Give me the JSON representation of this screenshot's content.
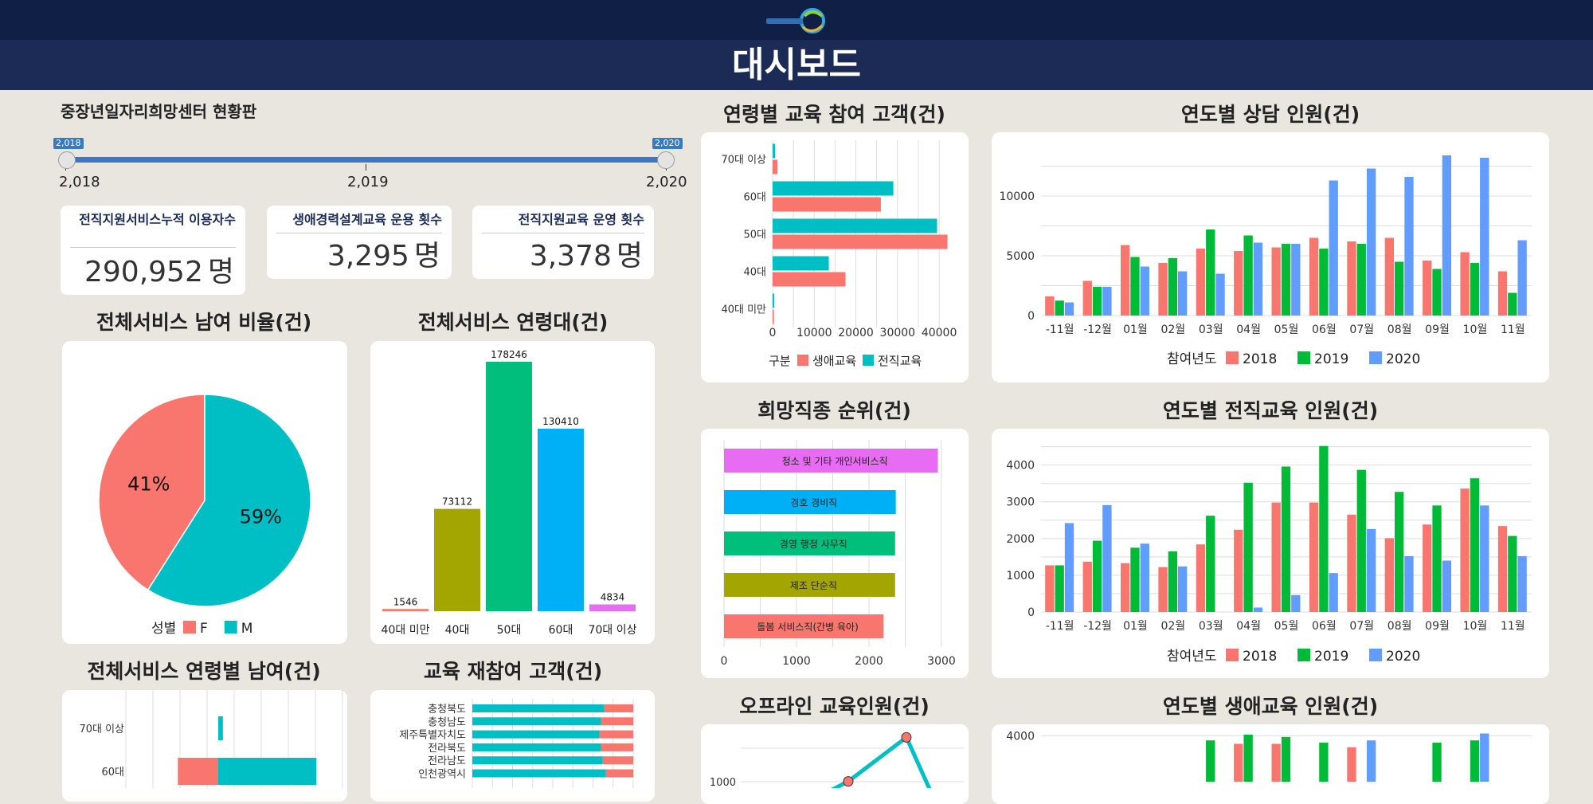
{
  "header": {
    "title": "대시보드",
    "logo_icon": "center-logo-icon"
  },
  "sidebar": {
    "title": "중장년일자리희망센터 현황판"
  },
  "slider": {
    "min_label": "2,018",
    "mid_label": "2,019",
    "max_label": "2,020",
    "handle_low": "2,018",
    "handle_high": "2,020",
    "low": 2018,
    "high": 2020
  },
  "kpis": [
    {
      "label": "전직지원서비스누적 이용자수",
      "value": "290,952",
      "unit": "명"
    },
    {
      "label": "생애경력설계교육 운용 횟수",
      "value": "3,295",
      "unit": "명"
    },
    {
      "label": "전직지원교육 운영 횟수",
      "value": "3,378",
      "unit": "명"
    }
  ],
  "sections": {
    "gender": "전체서비스 남여 비율(건)",
    "ageband": "전체서비스 연령대(건)",
    "age_gender": "전체서비스 연령별 남여(건)",
    "reedu": "교육 재참여 고객(건)",
    "age_edu": "연령별 교육 참여 고객(건)",
    "jobs": "희망직종 순위(건)",
    "offline": "오프라인 교육인원(건)",
    "consult": "연도별 상담 인원(건)",
    "transfer": "연도별 전직교육 인원(건)",
    "life": "연도별 생애교육 인원(건)"
  },
  "colors": {
    "red": "#f8766d",
    "teal": "#00bfc4",
    "green": "#00ba38",
    "blue": "#619cff",
    "olive": "#a3a500",
    "sky": "#00b0f6",
    "mint": "#00bf7d",
    "magenta": "#e76bf3"
  },
  "chart_data": [
    {
      "id": "gender",
      "type": "pie",
      "labels": [
        "F",
        "M"
      ],
      "values": [
        41,
        59
      ],
      "slice_labels": [
        "41%",
        "59%"
      ],
      "legend_title": "성별"
    },
    {
      "id": "ageband",
      "type": "bar",
      "categories": [
        "40대 미만",
        "40대",
        "50대",
        "60대",
        "70대 이상"
      ],
      "values": [
        1546,
        73112,
        178246,
        130410,
        4834
      ],
      "data_labels": [
        "1546",
        "73112",
        "178246",
        "130410",
        "4834"
      ]
    },
    {
      "id": "age_edu",
      "type": "bar",
      "orientation": "horizontal",
      "categories": [
        "70대 이상",
        "60대",
        "50대",
        "40대",
        "40대 미만"
      ],
      "series": [
        {
          "name": "생애교육",
          "values": [
            1200,
            26000,
            42000,
            17500,
            300
          ]
        },
        {
          "name": "전직교육",
          "values": [
            600,
            29000,
            39500,
            13500,
            400
          ]
        }
      ],
      "xticks": [
        "0",
        "10000",
        "20000",
        "30000",
        "40000"
      ],
      "xlim": [
        0,
        44000
      ],
      "legend_title": "구분"
    },
    {
      "id": "jobs",
      "type": "bar",
      "orientation": "horizontal",
      "categories": [
        "청소 및 기타 개인서비스직",
        "경호 경비직",
        "경영 행정 사무직",
        "제조 단순직",
        "돌봄 서비스직(간병 육아)"
      ],
      "values": [
        2950,
        2370,
        2360,
        2360,
        2200
      ],
      "xticks": [
        "0",
        "1000",
        "2000",
        "3000"
      ],
      "xlim": [
        0,
        3000
      ]
    },
    {
      "id": "consult",
      "type": "bar",
      "categories": [
        "-11월",
        "-12월",
        "01월",
        "02월",
        "03월",
        "04월",
        "05월",
        "06월",
        "07월",
        "08월",
        "09월",
        "10월",
        "11월"
      ],
      "series": [
        {
          "name": "2018",
          "values": [
            1600,
            2900,
            5900,
            4400,
            5600,
            5400,
            5700,
            6500,
            6200,
            6500,
            4600,
            5300,
            3700
          ]
        },
        {
          "name": "2019",
          "values": [
            1250,
            2400,
            4900,
            4800,
            7200,
            6700,
            6000,
            5600,
            6000,
            4500,
            3900,
            4400,
            1900
          ]
        },
        {
          "name": "2020",
          "values": [
            1100,
            2400,
            4100,
            3700,
            3500,
            6100,
            6000,
            11300,
            12300,
            11600,
            13400,
            13200,
            6300
          ]
        }
      ],
      "yticks": [
        "0",
        "5000",
        "10000"
      ],
      "ylim": [
        0,
        14000
      ],
      "legend_title": "참여년도"
    },
    {
      "id": "transfer",
      "type": "bar",
      "categories": [
        "-11월",
        "-12월",
        "01월",
        "02월",
        "03월",
        "04월",
        "05월",
        "06월",
        "07월",
        "08월",
        "09월",
        "10월",
        "11월"
      ],
      "series": [
        {
          "name": "2018",
          "values": [
            1270,
            1370,
            1330,
            1220,
            1840,
            2240,
            2980,
            2980,
            2650,
            2010,
            2380,
            3360,
            2340
          ]
        },
        {
          "name": "2019",
          "values": [
            1270,
            1940,
            1750,
            1650,
            2620,
            3520,
            3960,
            4520,
            3870,
            3270,
            2900,
            3640,
            2070
          ]
        },
        {
          "name": "2020",
          "values": [
            2420,
            2910,
            1860,
            1240,
            0,
            120,
            460,
            1060,
            2260,
            1520,
            1400,
            2900,
            1520
          ]
        }
      ],
      "yticks": [
        "0",
        "1000",
        "2000",
        "3000",
        "4000"
      ],
      "ylim": [
        0,
        4600
      ],
      "legend_title": "참여년도"
    },
    {
      "id": "reedu",
      "type": "bar",
      "orientation": "horizontal",
      "stacked": true,
      "categories": [
        "충청북도",
        "충청남도",
        "제주특별자치도",
        "전라북도",
        "전라남도",
        "인천광역시"
      ],
      "series": [
        {
          "name": "",
          "values": [
            0.82,
            0.8,
            0.79,
            0.8,
            0.81,
            0.83
          ]
        },
        {
          "name": "",
          "values": [
            0.18,
            0.2,
            0.21,
            0.2,
            0.19,
            0.17
          ]
        }
      ]
    },
    {
      "id": "age_gender",
      "type": "bar",
      "orientation": "horizontal",
      "categories": [
        "70대 이상",
        "60대"
      ],
      "series": [
        {
          "name": "F",
          "values": [
            0,
            3500
          ]
        },
        {
          "name": "M",
          "values": [
            400,
            8500
          ]
        }
      ]
    },
    {
      "id": "offline",
      "type": "line",
      "x": [
        0,
        1,
        2,
        3
      ],
      "values": [
        null,
        1600,
        3900,
        null
      ],
      "yticks": [
        "1000"
      ]
    },
    {
      "id": "life",
      "type": "bar",
      "categories": [
        "-11월",
        "-12월",
        "01월",
        "02월",
        "03월",
        "04월",
        "05월",
        "06월",
        "07월",
        "08월",
        "09월",
        "10월",
        "11월"
      ],
      "series": [
        {
          "name": "2018",
          "values": [
            0,
            0,
            0,
            0,
            0,
            3300,
            3300,
            0,
            3000,
            0,
            0,
            0,
            0
          ]
        },
        {
          "name": "2019",
          "values": [
            0,
            0,
            0,
            0,
            3600,
            4100,
            3900,
            3400,
            0,
            0,
            3400,
            3600,
            0
          ]
        },
        {
          "name": "2020",
          "values": [
            0,
            0,
            0,
            0,
            0,
            0,
            0,
            0,
            3600,
            0,
            0,
            4200,
            0
          ]
        }
      ],
      "yticks": [
        "4000"
      ],
      "ylim": [
        0,
        5000
      ]
    }
  ]
}
